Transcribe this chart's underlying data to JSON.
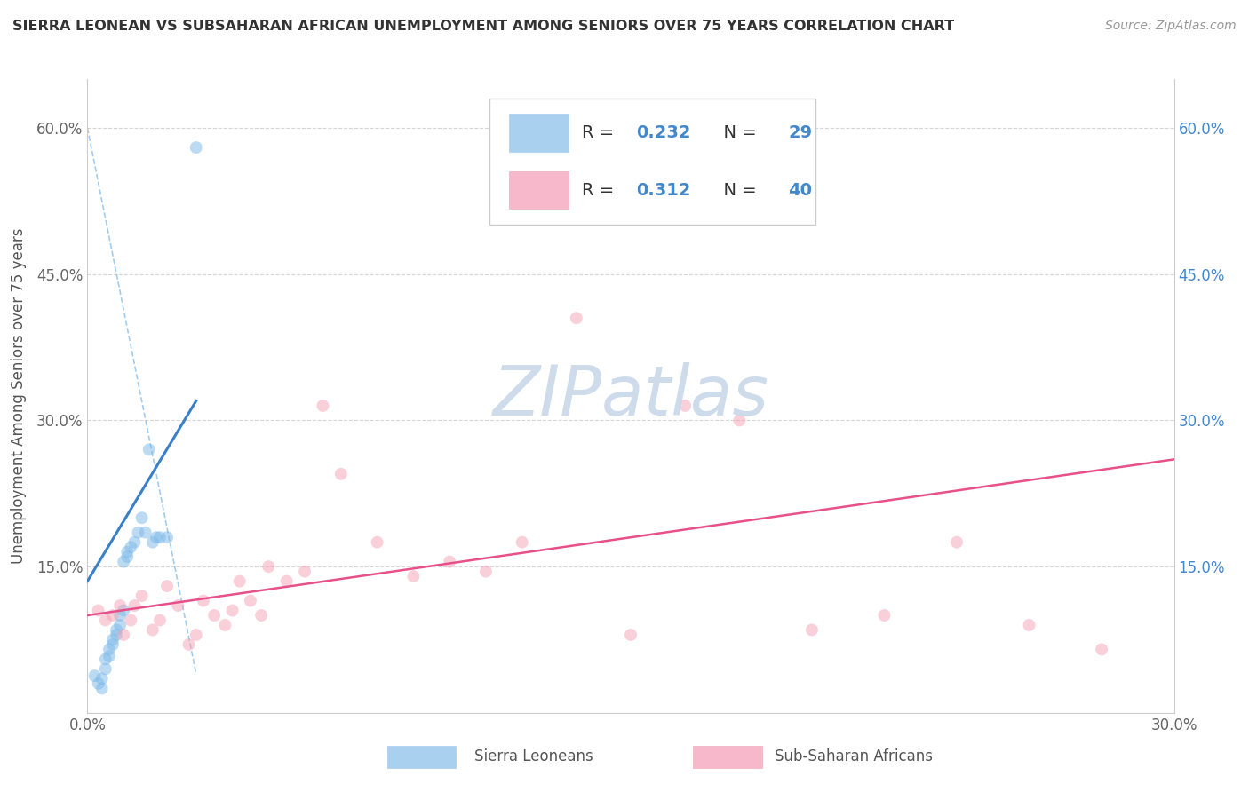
{
  "title": "SIERRA LEONEAN VS SUBSAHARAN AFRICAN UNEMPLOYMENT AMONG SENIORS OVER 75 YEARS CORRELATION CHART",
  "source": "Source: ZipAtlas.com",
  "ylabel": "Unemployment Among Seniors over 75 years",
  "xlim": [
    0.0,
    0.3
  ],
  "ylim": [
    0.0,
    0.65
  ],
  "yticks": [
    0.0,
    0.15,
    0.3,
    0.45,
    0.6
  ],
  "left_ytick_labels": [
    "",
    "15.0%",
    "30.0%",
    "45.0%",
    "60.0%"
  ],
  "right_ytick_labels": [
    "",
    "15.0%",
    "30.0%",
    "45.0%",
    "60.0%"
  ],
  "xtick_vals": [
    0.0,
    0.05,
    0.1,
    0.15,
    0.2,
    0.25,
    0.3
  ],
  "xtick_labels": [
    "0.0%",
    "",
    "",
    "",
    "",
    "",
    "30.0%"
  ],
  "legend_r1": "0.232",
  "legend_n1": "29",
  "legend_r2": "0.312",
  "legend_n2": "40",
  "blue_dot_color": "#7ab8e8",
  "pink_dot_color": "#f4a0b5",
  "blue_line_color": "#3a80c8",
  "pink_line_color": "#e8508a",
  "legend_blue_fill": "#aad0f0",
  "legend_pink_fill": "#f8b8cc",
  "title_color": "#333333",
  "source_color": "#999999",
  "watermark_color": "#c8d8e8",
  "axis_color": "#cccccc",
  "tick_color": "#666666",
  "rn_color": "#4488cc",
  "blue_scatter_x": [
    0.002,
    0.003,
    0.004,
    0.004,
    0.005,
    0.005,
    0.006,
    0.006,
    0.007,
    0.007,
    0.008,
    0.008,
    0.009,
    0.009,
    0.01,
    0.01,
    0.011,
    0.011,
    0.012,
    0.013,
    0.014,
    0.015,
    0.016,
    0.017,
    0.018,
    0.019,
    0.02,
    0.022,
    0.03
  ],
  "blue_scatter_y": [
    0.038,
    0.03,
    0.025,
    0.035,
    0.045,
    0.055,
    0.058,
    0.065,
    0.07,
    0.075,
    0.08,
    0.085,
    0.09,
    0.1,
    0.105,
    0.155,
    0.16,
    0.165,
    0.17,
    0.175,
    0.185,
    0.2,
    0.185,
    0.27,
    0.175,
    0.18,
    0.18,
    0.18,
    0.58
  ],
  "pink_scatter_x": [
    0.003,
    0.005,
    0.007,
    0.009,
    0.01,
    0.012,
    0.013,
    0.015,
    0.018,
    0.02,
    0.022,
    0.025,
    0.028,
    0.03,
    0.032,
    0.035,
    0.038,
    0.04,
    0.042,
    0.045,
    0.048,
    0.05,
    0.055,
    0.06,
    0.065,
    0.07,
    0.08,
    0.09,
    0.1,
    0.11,
    0.12,
    0.135,
    0.15,
    0.165,
    0.18,
    0.2,
    0.22,
    0.24,
    0.26,
    0.28
  ],
  "pink_scatter_y": [
    0.105,
    0.095,
    0.1,
    0.11,
    0.08,
    0.095,
    0.11,
    0.12,
    0.085,
    0.095,
    0.13,
    0.11,
    0.07,
    0.08,
    0.115,
    0.1,
    0.09,
    0.105,
    0.135,
    0.115,
    0.1,
    0.15,
    0.135,
    0.145,
    0.315,
    0.245,
    0.175,
    0.14,
    0.155,
    0.145,
    0.175,
    0.405,
    0.08,
    0.315,
    0.3,
    0.085,
    0.1,
    0.175,
    0.09,
    0.065
  ],
  "blue_trend_x": [
    0.0,
    0.03
  ],
  "blue_trend_y": [
    0.135,
    0.32
  ],
  "pink_trend_x": [
    0.0,
    0.3
  ],
  "pink_trend_y": [
    0.1,
    0.26
  ],
  "dashed_line_x": [
    0.0,
    0.03
  ],
  "dashed_line_y": [
    0.6,
    0.04
  ],
  "marker_size": 100,
  "marker_alpha": 0.5,
  "legend_labels": [
    "Sierra Leoneans",
    "Sub-Saharan Africans"
  ]
}
